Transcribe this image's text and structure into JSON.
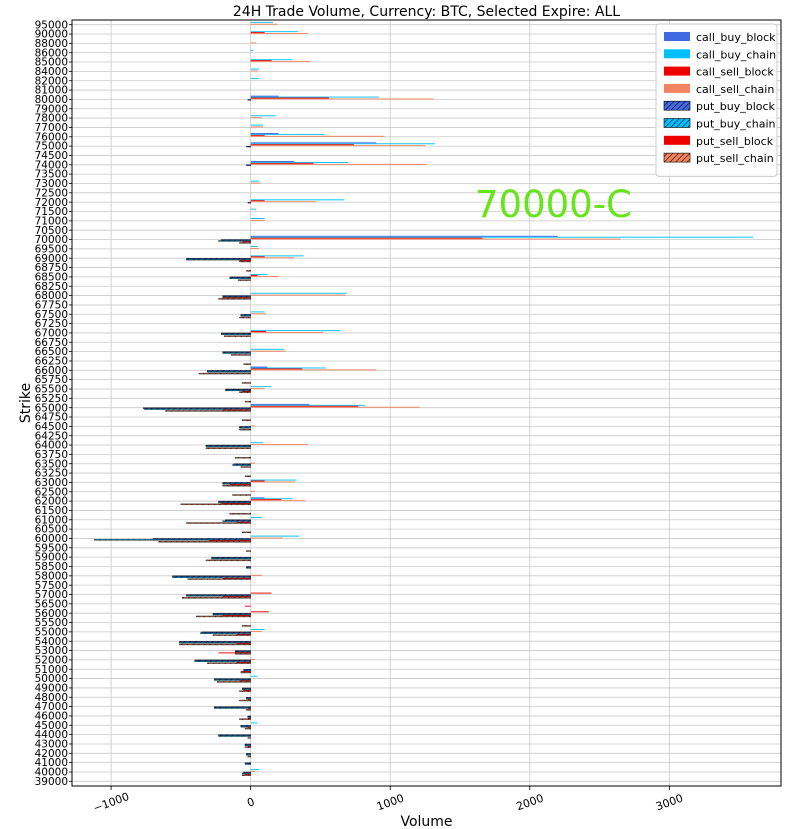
{
  "chart_data": {
    "type": "bar",
    "orientation": "horizontal",
    "title": "24H Trade Volume, Currency: BTC, Selected Expire: ALL",
    "xlabel": "Volume",
    "ylabel": "Strike",
    "xlim": [
      -1280,
      3800
    ],
    "xticks": [
      -1000,
      0,
      1000,
      2000,
      3000
    ],
    "grid": true,
    "legend_position": "top-right",
    "annotation": {
      "text": "70000-C",
      "color": "#66e61a"
    },
    "categories": [
      "95000",
      "90000",
      "88000",
      "86000",
      "85000",
      "84000",
      "82000",
      "81000",
      "80000",
      "79000",
      "78000",
      "77000",
      "76000",
      "75000",
      "74500",
      "74000",
      "73500",
      "73000",
      "72500",
      "72000",
      "71500",
      "71000",
      "70500",
      "70000",
      "69500",
      "69000",
      "68750",
      "68500",
      "68250",
      "68000",
      "67750",
      "67500",
      "67250",
      "67000",
      "66750",
      "66500",
      "66250",
      "66000",
      "65750",
      "65500",
      "65250",
      "65000",
      "64750",
      "64500",
      "64250",
      "64000",
      "63750",
      "63500",
      "63250",
      "63000",
      "62500",
      "62000",
      "61500",
      "61000",
      "60500",
      "60000",
      "59500",
      "59000",
      "58500",
      "58000",
      "57500",
      "57000",
      "56500",
      "56000",
      "55500",
      "55000",
      "54000",
      "53000",
      "52000",
      "51000",
      "50000",
      "49000",
      "48000",
      "47000",
      "46000",
      "45000",
      "44000",
      "43000",
      "42000",
      "41000",
      "40000",
      "39000"
    ],
    "series": [
      {
        "name": "call_buy_block",
        "color": "#4169e1",
        "hatch": false,
        "values": [
          0,
          0,
          0,
          0,
          0,
          0,
          0,
          0,
          200,
          0,
          0,
          0,
          200,
          900,
          0,
          310,
          0,
          0,
          0,
          0,
          0,
          0,
          0,
          2200,
          0,
          0,
          0,
          0,
          0,
          0,
          0,
          0,
          0,
          0,
          0,
          0,
          0,
          120,
          0,
          0,
          0,
          420,
          0,
          0,
          0,
          0,
          0,
          0,
          0,
          0,
          0,
          100,
          0,
          0,
          0,
          0,
          0,
          0,
          0,
          0,
          0,
          0,
          0,
          0,
          0,
          0,
          0,
          0,
          0,
          0,
          0,
          0,
          0,
          0,
          0,
          0,
          0,
          0,
          0,
          0,
          0,
          0
        ]
      },
      {
        "name": "call_buy_chain",
        "color": "#00bfff",
        "hatch": false,
        "values": [
          160,
          340,
          0,
          20,
          300,
          60,
          60,
          0,
          920,
          0,
          180,
          90,
          530,
          1320,
          0,
          700,
          0,
          60,
          0,
          670,
          40,
          100,
          0,
          3600,
          50,
          380,
          0,
          120,
          0,
          690,
          0,
          100,
          0,
          640,
          0,
          240,
          0,
          540,
          0,
          150,
          0,
          820,
          0,
          0,
          0,
          90,
          0,
          0,
          0,
          330,
          0,
          300,
          0,
          80,
          0,
          350,
          0,
          0,
          0,
          0,
          0,
          0,
          0,
          0,
          0,
          100,
          0,
          0,
          0,
          0,
          50,
          0,
          0,
          0,
          0,
          50,
          0,
          0,
          0,
          0,
          60,
          0
        ]
      },
      {
        "name": "call_sell_block",
        "color": "#ee0000",
        "hatch": false,
        "values": [
          0,
          100,
          0,
          0,
          150,
          0,
          0,
          0,
          560,
          0,
          0,
          0,
          100,
          740,
          0,
          450,
          0,
          0,
          0,
          100,
          0,
          0,
          0,
          1660,
          0,
          100,
          0,
          50,
          0,
          0,
          0,
          0,
          0,
          110,
          0,
          0,
          0,
          370,
          0,
          0,
          0,
          770,
          0,
          0,
          0,
          0,
          0,
          0,
          0,
          100,
          0,
          220,
          0,
          0,
          0,
          0,
          0,
          0,
          0,
          0,
          0,
          150,
          0,
          130,
          0,
          0,
          0,
          0,
          0,
          0,
          0,
          0,
          0,
          0,
          0,
          0,
          0,
          0,
          0,
          0,
          0,
          0
        ]
      },
      {
        "name": "call_sell_chain",
        "color": "#f4845f",
        "hatch": false,
        "values": [
          190,
          410,
          40,
          0,
          430,
          50,
          0,
          0,
          1310,
          0,
          80,
          90,
          960,
          1250,
          0,
          1260,
          0,
          70,
          0,
          470,
          0,
          100,
          0,
          2650,
          60,
          310,
          0,
          200,
          0,
          680,
          0,
          110,
          0,
          520,
          0,
          250,
          0,
          900,
          0,
          100,
          0,
          1210,
          0,
          30,
          0,
          410,
          0,
          30,
          0,
          320,
          30,
          390,
          0,
          0,
          0,
          230,
          0,
          0,
          0,
          80,
          0,
          0,
          0,
          0,
          0,
          80,
          0,
          0,
          30,
          0,
          0,
          0,
          0,
          0,
          0,
          0,
          0,
          0,
          0,
          0,
          30,
          0
        ]
      },
      {
        "name": "put_buy_block",
        "color": "#4169e1",
        "hatch": true,
        "values": [
          0,
          0,
          0,
          0,
          0,
          0,
          0,
          0,
          -20,
          0,
          0,
          0,
          0,
          -30,
          0,
          -30,
          0,
          0,
          0,
          -20,
          0,
          0,
          0,
          -210,
          0,
          -460,
          0,
          -150,
          0,
          -200,
          0,
          -70,
          0,
          -210,
          0,
          -200,
          0,
          -310,
          0,
          -180,
          0,
          -770,
          0,
          -80,
          0,
          -320,
          0,
          -120,
          0,
          -200,
          0,
          -230,
          0,
          -180,
          0,
          -700,
          0,
          -280,
          -30,
          -560,
          0,
          -460,
          0,
          -270,
          0,
          -350,
          -510,
          -110,
          -400,
          -50,
          -260,
          -60,
          -30,
          -260,
          -20,
          -70,
          -230,
          -40,
          -30,
          -40,
          -50,
          0
        ]
      },
      {
        "name": "put_buy_chain",
        "color": "#00bfff",
        "hatch": true,
        "values": [
          0,
          0,
          0,
          0,
          0,
          0,
          0,
          0,
          0,
          0,
          0,
          0,
          0,
          0,
          0,
          0,
          0,
          0,
          0,
          0,
          0,
          0,
          0,
          -230,
          0,
          -460,
          0,
          -150,
          0,
          -200,
          0,
          -70,
          0,
          -210,
          0,
          -200,
          0,
          -310,
          0,
          -180,
          0,
          -760,
          0,
          -80,
          0,
          -320,
          0,
          -130,
          0,
          -200,
          0,
          -230,
          0,
          -200,
          0,
          -1120,
          0,
          -280,
          -30,
          -560,
          0,
          -460,
          0,
          -270,
          0,
          -360,
          -510,
          -110,
          -400,
          -50,
          -260,
          -60,
          -30,
          -260,
          -20,
          -70,
          -230,
          -40,
          -30,
          -40,
          -60,
          0
        ]
      },
      {
        "name": "put_sell_block",
        "color": "#ee0000",
        "hatch": false,
        "values": [
          0,
          0,
          0,
          0,
          0,
          0,
          0,
          0,
          0,
          0,
          0,
          0,
          0,
          0,
          0,
          0,
          0,
          0,
          0,
          0,
          0,
          0,
          0,
          -60,
          0,
          -80,
          0,
          0,
          0,
          -200,
          0,
          0,
          0,
          0,
          0,
          0,
          0,
          0,
          0,
          -60,
          0,
          -200,
          0,
          0,
          0,
          0,
          0,
          0,
          0,
          -150,
          0,
          -210,
          0,
          -100,
          0,
          -300,
          0,
          0,
          0,
          -200,
          0,
          -200,
          -40,
          -200,
          0,
          -100,
          -100,
          -230,
          -100,
          -70,
          -80,
          -50,
          -20,
          -20,
          -20,
          -20,
          0,
          -20,
          0,
          0,
          -40,
          0
        ]
      },
      {
        "name": "put_sell_chain",
        "color": "#f4845f",
        "hatch": true,
        "values": [
          0,
          0,
          0,
          0,
          0,
          0,
          0,
          0,
          0,
          0,
          0,
          0,
          0,
          0,
          0,
          0,
          0,
          0,
          0,
          0,
          0,
          0,
          0,
          -80,
          0,
          -80,
          -30,
          -90,
          0,
          -230,
          0,
          -80,
          0,
          -190,
          0,
          -140,
          -50,
          -370,
          -60,
          -80,
          -40,
          -610,
          -60,
          -80,
          0,
          -320,
          -110,
          -70,
          -40,
          -200,
          -130,
          -500,
          -150,
          -460,
          -60,
          -660,
          -30,
          -320,
          0,
          -450,
          0,
          -490,
          0,
          -390,
          -60,
          -270,
          -510,
          -110,
          -310,
          -70,
          -240,
          -80,
          -80,
          -30,
          -80,
          -40,
          -20,
          -40,
          -20,
          0,
          -60,
          0
        ]
      }
    ]
  }
}
